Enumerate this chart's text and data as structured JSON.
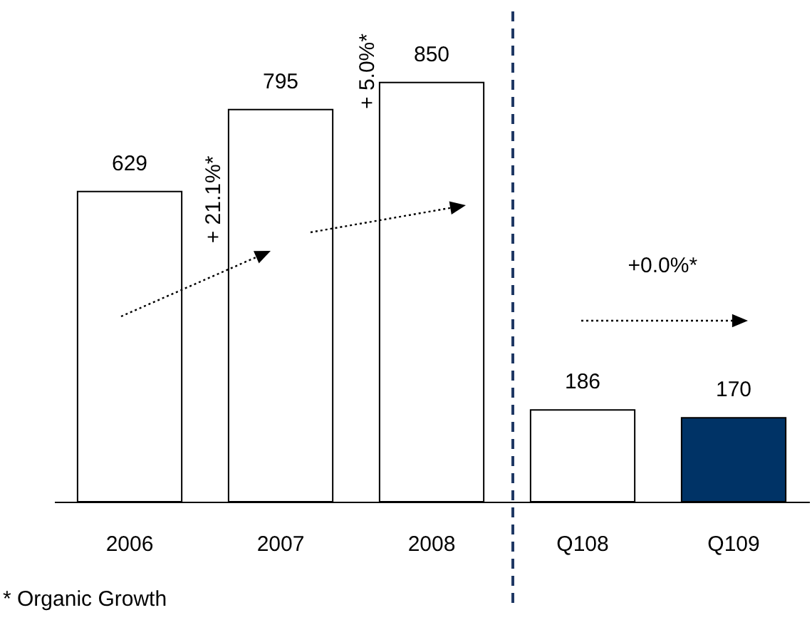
{
  "chart_data": {
    "type": "bar",
    "categories": [
      "2006",
      "2007",
      "2008",
      "Q108",
      "Q109"
    ],
    "values": [
      629,
      795,
      850,
      186,
      170
    ],
    "colors": [
      "#ffffff",
      "#ffffff",
      "#ffffff",
      "#ffffff",
      "#003366"
    ],
    "data_labels": true,
    "annotations": [
      "+ 21.1%*",
      "+ 5.0%*",
      "+0.0%*",
      "* Organic Growth"
    ]
  }
}
